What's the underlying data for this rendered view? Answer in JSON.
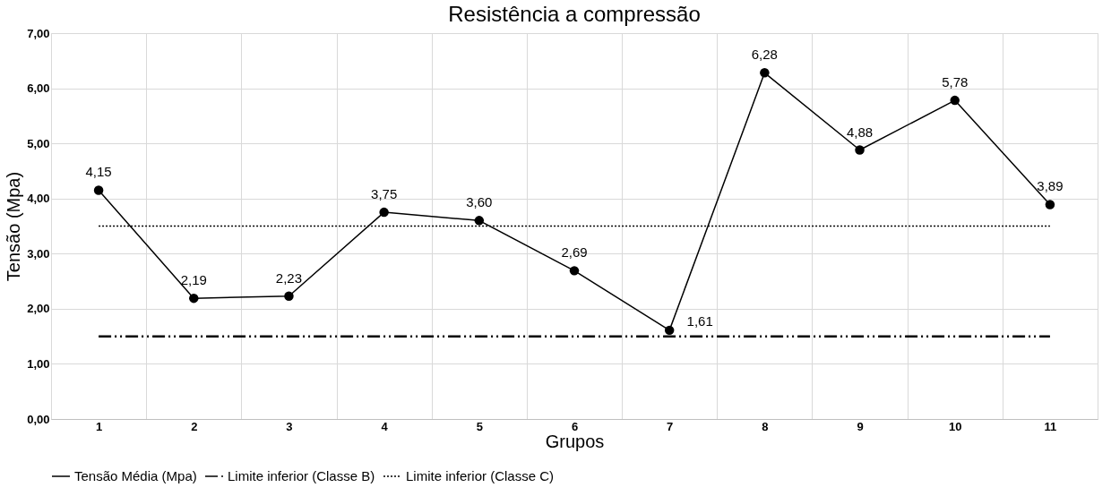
{
  "chart_data": {
    "type": "line",
    "title": "Resistência a compressão",
    "xlabel": "Grupos",
    "ylabel": "Tensão (Mpa)",
    "categories": [
      "1",
      "2",
      "3",
      "4",
      "5",
      "6",
      "7",
      "8",
      "9",
      "10",
      "11"
    ],
    "series": [
      {
        "name": "Tensão Média (Mpa)",
        "color": "#000000",
        "marker": "circle",
        "line_style": "solid",
        "values": [
          4.15,
          2.19,
          2.23,
          3.75,
          3.6,
          2.69,
          1.61,
          6.28,
          4.88,
          5.78,
          3.89
        ],
        "value_labels": [
          "4,15",
          "2,19",
          "2,23",
          "3,75",
          "3,60",
          "2,69",
          "1,61",
          "6,28",
          "4,88",
          "5,78",
          "3,89"
        ]
      },
      {
        "name": "Limite inferior (Classe B)",
        "color": "#000000",
        "marker": "none",
        "line_style": "dashed",
        "values": [
          1.5,
          1.5,
          1.5,
          1.5,
          1.5,
          1.5,
          1.5,
          1.5,
          1.5,
          1.5,
          1.5
        ]
      },
      {
        "name": "Limite inferior (Classe C)",
        "color": "#000000",
        "marker": "none",
        "line_style": "dotted",
        "values": [
          3.5,
          3.5,
          3.5,
          3.5,
          3.5,
          3.5,
          3.5,
          3.5,
          3.5,
          3.5,
          3.5
        ]
      }
    ],
    "ylim": [
      0,
      7
    ],
    "yticks": [
      {
        "value": 0,
        "label": "0,00"
      },
      {
        "value": 1,
        "label": "1,00"
      },
      {
        "value": 2,
        "label": "2,00"
      },
      {
        "value": 3,
        "label": "3,00"
      },
      {
        "value": 4,
        "label": "4,00"
      },
      {
        "value": 5,
        "label": "5,00"
      },
      {
        "value": 6,
        "label": "6,00"
      },
      {
        "value": 7,
        "label": "7,00"
      }
    ],
    "grid": true,
    "legend": "bottom"
  }
}
